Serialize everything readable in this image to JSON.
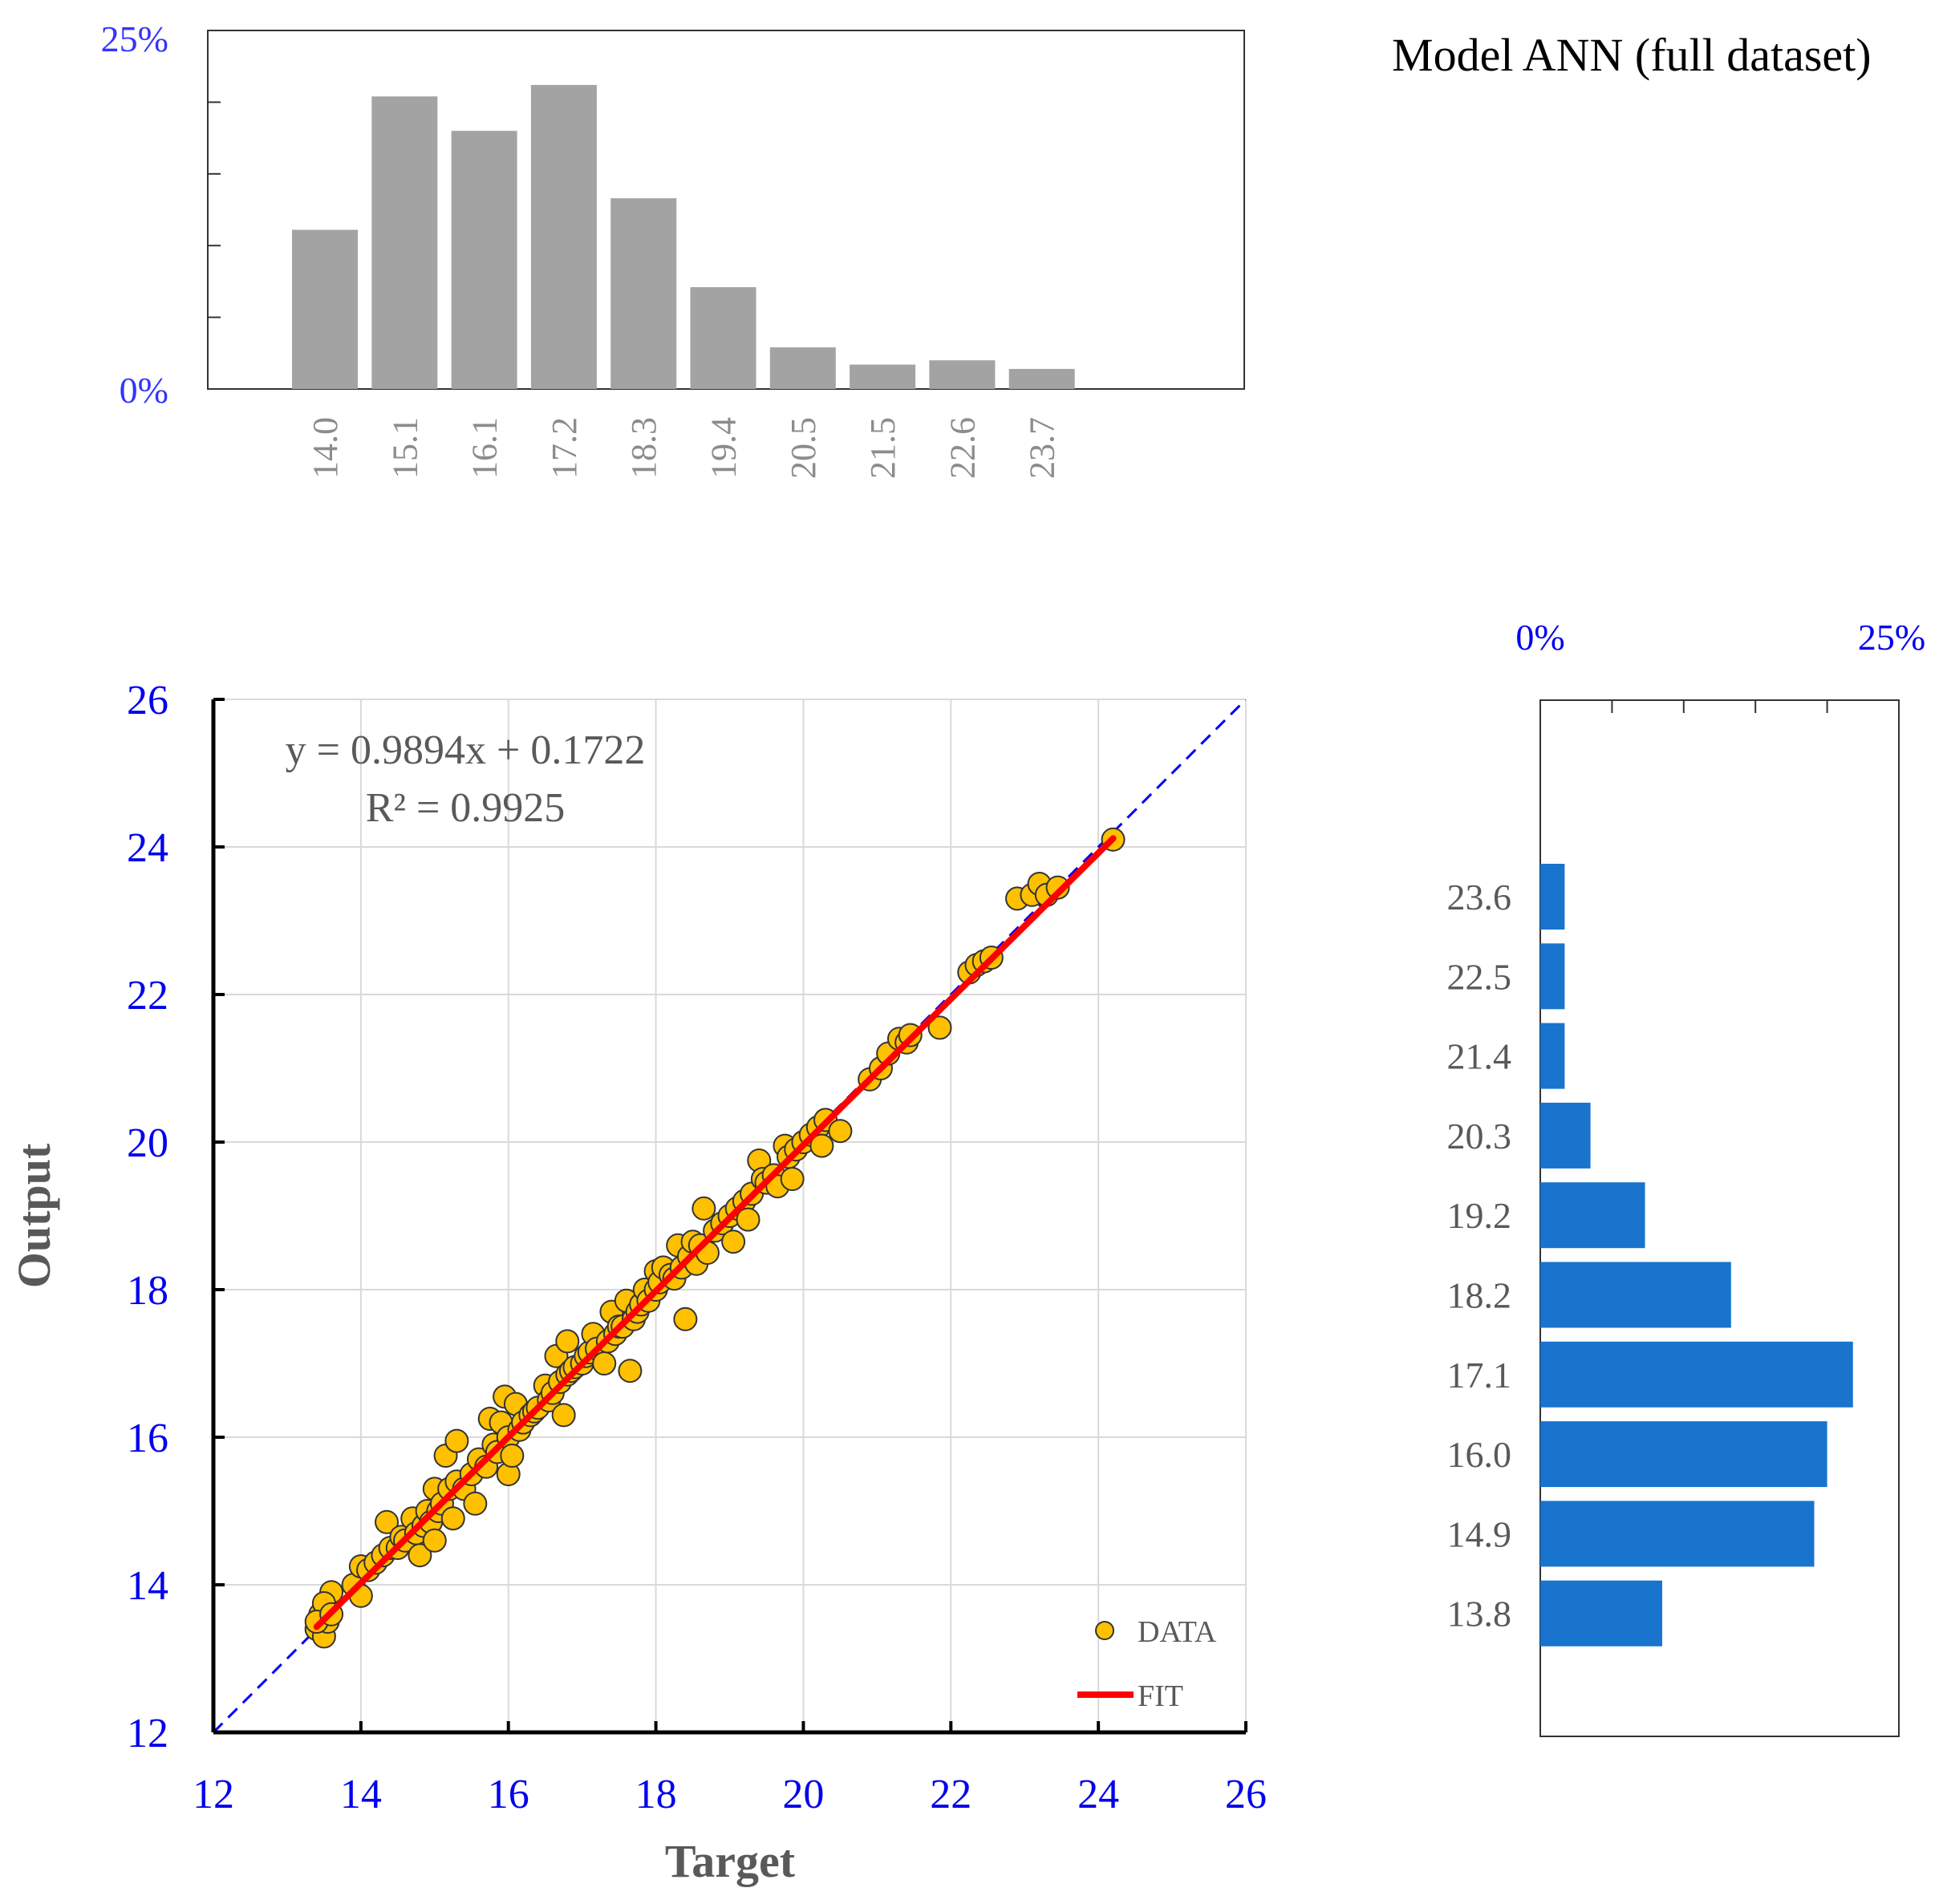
{
  "title": "Model ANN (full dataset)",
  "colors": {
    "top_hist_bar": "#a3a3a3",
    "right_hist_bar": "#1874cd",
    "pct_label": "#3333ff",
    "scatter_tick": "#0000ee",
    "data_fill": "#ffc000",
    "data_edge": "#333333",
    "fit_line": "#ff0000",
    "identity_line": "#0000ff",
    "grey_text": "#595959"
  },
  "chart_data": [
    {
      "type": "bar",
      "role": "top-histogram",
      "categories": [
        "14.0",
        "15.1",
        "16.1",
        "17.2",
        "18.3",
        "19.4",
        "20.5",
        "21.5",
        "22.6",
        "23.7"
      ],
      "values": [
        11.1,
        20.4,
        18.0,
        21.2,
        13.3,
        7.1,
        2.9,
        1.7,
        2.0,
        1.4
      ],
      "ylim": [
        0,
        25
      ],
      "yticks": [
        0,
        5,
        10,
        15,
        20,
        25
      ],
      "ytick_labels": {
        "min": "0%",
        "max": "25%"
      }
    },
    {
      "type": "bar",
      "role": "right-histogram",
      "orientation": "horizontal",
      "categories": [
        "23.6",
        "22.5",
        "21.4",
        "20.3",
        "19.2",
        "18.2",
        "17.1",
        "16.0",
        "14.9",
        "13.8"
      ],
      "values": [
        1.7,
        1.7,
        1.7,
        3.5,
        7.3,
        13.3,
        21.8,
        20.0,
        19.1,
        8.5
      ],
      "xlim": [
        0,
        25
      ],
      "xticks": [
        0,
        5,
        10,
        15,
        20,
        25
      ],
      "xtick_labels": {
        "min": "0%",
        "max": "25%"
      }
    },
    {
      "type": "scatter",
      "role": "main-scatter",
      "xlabel": "Target",
      "ylabel": "Output",
      "xlim": [
        12,
        26
      ],
      "ylim": [
        12,
        26
      ],
      "xticks": [
        12,
        14,
        16,
        18,
        20,
        22,
        24,
        26
      ],
      "yticks": [
        12,
        14,
        16,
        18,
        20,
        22,
        24,
        26
      ],
      "grid": true,
      "equation": "y = 0.9894x + 0.1722",
      "r2": "R² = 0.9925",
      "legend": {
        "position": "bottom-right",
        "data_label": "DATA",
        "fit_label": "FIT"
      },
      "fit": {
        "slope": 0.9894,
        "intercept": 0.1722,
        "x_range": [
          13.4,
          24.2
        ]
      },
      "identity_line": true,
      "points": [
        [
          13.4,
          13.4
        ],
        [
          13.45,
          13.6
        ],
        [
          13.5,
          13.3
        ],
        [
          13.55,
          13.5
        ],
        [
          13.6,
          13.9
        ],
        [
          13.5,
          13.75
        ],
        [
          13.4,
          13.5
        ],
        [
          13.6,
          13.6
        ],
        [
          13.9,
          14.0
        ],
        [
          14.0,
          13.85
        ],
        [
          14.0,
          14.25
        ],
        [
          14.1,
          14.2
        ],
        [
          14.2,
          14.3
        ],
        [
          14.3,
          14.4
        ],
        [
          14.35,
          14.85
        ],
        [
          14.4,
          14.5
        ],
        [
          14.5,
          14.5
        ],
        [
          14.55,
          14.65
        ],
        [
          14.6,
          14.6
        ],
        [
          14.7,
          14.9
        ],
        [
          14.75,
          14.7
        ],
        [
          14.8,
          14.4
        ],
        [
          14.85,
          14.8
        ],
        [
          14.9,
          15.0
        ],
        [
          14.95,
          14.85
        ],
        [
          15.0,
          15.3
        ],
        [
          15.0,
          14.6
        ],
        [
          15.05,
          15.0
        ],
        [
          15.1,
          15.1
        ],
        [
          15.15,
          15.75
        ],
        [
          15.2,
          15.3
        ],
        [
          15.25,
          14.9
        ],
        [
          15.3,
          15.95
        ],
        [
          15.3,
          15.4
        ],
        [
          15.4,
          15.3
        ],
        [
          15.5,
          15.5
        ],
        [
          15.55,
          15.1
        ],
        [
          15.6,
          15.7
        ],
        [
          15.7,
          15.6
        ],
        [
          15.75,
          16.25
        ],
        [
          15.8,
          15.9
        ],
        [
          15.85,
          15.8
        ],
        [
          15.9,
          16.2
        ],
        [
          15.95,
          16.55
        ],
        [
          16.0,
          15.5
        ],
        [
          16.0,
          16.0
        ],
        [
          16.05,
          15.75
        ],
        [
          16.1,
          16.45
        ],
        [
          16.15,
          16.1
        ],
        [
          16.2,
          16.2
        ],
        [
          16.3,
          16.3
        ],
        [
          16.35,
          16.35
        ],
        [
          16.4,
          16.4
        ],
        [
          16.5,
          16.7
        ],
        [
          16.55,
          16.5
        ],
        [
          16.6,
          16.6
        ],
        [
          16.65,
          17.1
        ],
        [
          16.7,
          16.75
        ],
        [
          16.75,
          16.3
        ],
        [
          16.8,
          17.3
        ],
        [
          16.8,
          16.85
        ],
        [
          16.85,
          16.9
        ],
        [
          16.9,
          16.95
        ],
        [
          17.0,
          17.0
        ],
        [
          17.05,
          17.1
        ],
        [
          17.1,
          17.15
        ],
        [
          17.15,
          17.4
        ],
        [
          17.2,
          17.2
        ],
        [
          17.3,
          17.0
        ],
        [
          17.35,
          17.3
        ],
        [
          17.4,
          17.7
        ],
        [
          17.45,
          17.4
        ],
        [
          17.5,
          17.5
        ],
        [
          17.55,
          17.5
        ],
        [
          17.6,
          17.85
        ],
        [
          17.65,
          16.9
        ],
        [
          17.7,
          17.6
        ],
        [
          17.75,
          17.7
        ],
        [
          17.8,
          17.8
        ],
        [
          17.85,
          18.0
        ],
        [
          17.9,
          17.85
        ],
        [
          18.0,
          18.0
        ],
        [
          18.0,
          18.25
        ],
        [
          18.05,
          18.1
        ],
        [
          18.1,
          18.3
        ],
        [
          18.2,
          18.2
        ],
        [
          18.25,
          18.15
        ],
        [
          18.3,
          18.6
        ],
        [
          18.35,
          18.3
        ],
        [
          18.4,
          17.6
        ],
        [
          18.45,
          18.45
        ],
        [
          18.5,
          18.65
        ],
        [
          18.55,
          18.35
        ],
        [
          18.6,
          18.6
        ],
        [
          18.65,
          19.1
        ],
        [
          18.7,
          18.5
        ],
        [
          18.8,
          18.8
        ],
        [
          18.9,
          18.9
        ],
        [
          19.0,
          19.0
        ],
        [
          19.05,
          18.65
        ],
        [
          19.1,
          19.1
        ],
        [
          19.2,
          19.2
        ],
        [
          19.25,
          18.95
        ],
        [
          19.3,
          19.3
        ],
        [
          19.4,
          19.75
        ],
        [
          19.45,
          19.5
        ],
        [
          19.5,
          19.45
        ],
        [
          19.6,
          19.55
        ],
        [
          19.65,
          19.4
        ],
        [
          19.75,
          19.95
        ],
        [
          19.8,
          19.8
        ],
        [
          19.85,
          19.5
        ],
        [
          19.9,
          19.9
        ],
        [
          20.0,
          20.0
        ],
        [
          20.1,
          20.1
        ],
        [
          20.2,
          20.2
        ],
        [
          20.25,
          19.95
        ],
        [
          20.3,
          20.3
        ],
        [
          20.5,
          20.15
        ],
        [
          20.9,
          20.85
        ],
        [
          21.05,
          21.0
        ],
        [
          21.15,
          21.2
        ],
        [
          21.3,
          21.4
        ],
        [
          21.4,
          21.35
        ],
        [
          21.45,
          21.45
        ],
        [
          21.85,
          21.55
        ],
        [
          22.25,
          22.3
        ],
        [
          22.35,
          22.4
        ],
        [
          22.45,
          22.45
        ],
        [
          22.55,
          22.5
        ],
        [
          22.9,
          23.3
        ],
        [
          23.1,
          23.35
        ],
        [
          23.2,
          23.5
        ],
        [
          23.3,
          23.35
        ],
        [
          23.45,
          23.45
        ],
        [
          24.2,
          24.1
        ]
      ]
    }
  ]
}
